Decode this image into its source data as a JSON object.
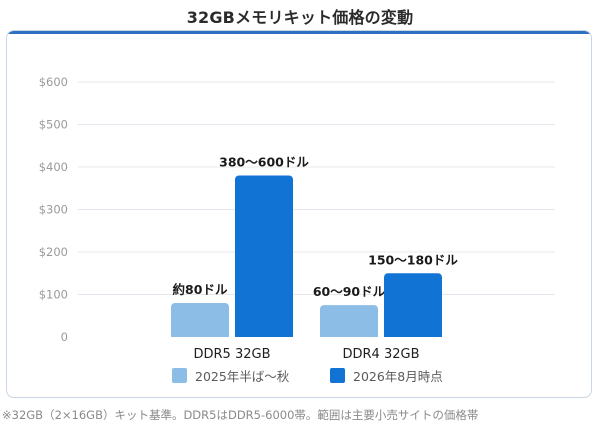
{
  "title": "32GBメモリキット価格の変動",
  "footnote": "※32GB（2×16GB）キット基準。DDR5はDDR5-6000帯。範囲は主要小売サイトの価格帯",
  "colors": {
    "series1": "#8bbde6",
    "series2": "#1173d4",
    "grid": "#e4e8ee",
    "tick": "#9a9a9a",
    "label": "#1a1a1a"
  },
  "chart_data": {
    "type": "bar",
    "categories": [
      "DDR5 32GB",
      "DDR4 32GB"
    ],
    "series": [
      {
        "name": "2025年半ば〜秋",
        "values": [
          80,
          75
        ],
        "labels": [
          "約80ドル",
          "60〜90ドル"
        ]
      },
      {
        "name": "2026年8月時点",
        "values": [
          380,
          150
        ],
        "labels": [
          "380〜600ドル",
          "150〜180ドル"
        ]
      }
    ],
    "yticks": [
      "0",
      "$100",
      "$200",
      "$300",
      "$400",
      "$500",
      "$600"
    ],
    "ylim": [
      0,
      600
    ],
    "grid": true,
    "legend": "bottom"
  }
}
